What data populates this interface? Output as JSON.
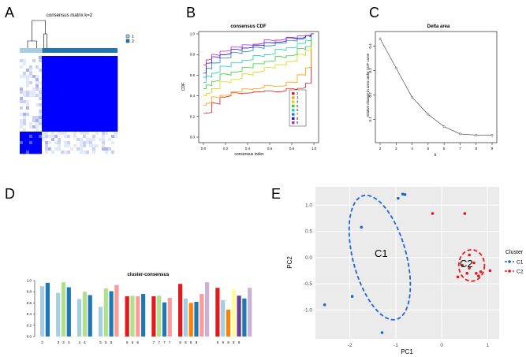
{
  "panel_letters": [
    "A",
    "B",
    "C",
    "D",
    "E"
  ],
  "colors": {
    "k2": "#e31a1c",
    "k3": "#ff9d00",
    "k4": "#d8d800",
    "k5": "#33cc33",
    "k6": "#1fc9b3",
    "k7": "#1f78d4",
    "k8": "#2a0fd8",
    "k9": "#b027c4",
    "consensus_blue": "#0000ff",
    "track_light": "#a6cee3",
    "track_dark": "#1f78b4",
    "c1": "#1f63d6",
    "c2": "#e41a1c",
    "panel_bg": "#ebebeb"
  },
  "chart_data": [
    {
      "panel": "A",
      "type": "heatmap",
      "title": "consensus matrix k=2",
      "legend": [
        "1",
        "2"
      ],
      "clusters": [
        {
          "label": "1",
          "share": 0.23
        },
        {
          "label": "2",
          "share": 0.77
        }
      ],
      "value_range": [
        0,
        1
      ]
    },
    {
      "panel": "B",
      "type": "line",
      "title": "consensus CDF",
      "xlabel": "consensus index",
      "ylabel": "CDF",
      "xlim": [
        0,
        1
      ],
      "ylim": [
        0,
        1
      ],
      "xticks": [
        "0.0",
        "0.2",
        "0.4",
        "0.6",
        "0.8",
        "1.0"
      ],
      "yticks": [
        "0.0",
        "0.2",
        "0.4",
        "0.6",
        "0.8",
        "1.0"
      ],
      "legend_position": "bottom-right",
      "x": [
        0,
        0.05,
        0.1,
        0.2,
        0.3,
        0.4,
        0.5,
        0.6,
        0.7,
        0.8,
        0.9,
        0.95,
        1.0
      ],
      "series": [
        {
          "name": "2",
          "values": [
            0.23,
            0.24,
            0.32,
            0.4,
            0.42,
            0.43,
            0.44,
            0.44,
            0.45,
            0.46,
            0.48,
            0.52,
            1.0
          ]
        },
        {
          "name": "3",
          "values": [
            0.31,
            0.34,
            0.38,
            0.41,
            0.44,
            0.46,
            0.48,
            0.49,
            0.5,
            0.53,
            0.6,
            0.68,
            1.0
          ]
        },
        {
          "name": "4",
          "values": [
            0.4,
            0.43,
            0.47,
            0.53,
            0.57,
            0.6,
            0.64,
            0.67,
            0.7,
            0.74,
            0.79,
            0.85,
            1.0
          ]
        },
        {
          "name": "5",
          "values": [
            0.47,
            0.5,
            0.55,
            0.6,
            0.64,
            0.67,
            0.71,
            0.74,
            0.77,
            0.8,
            0.85,
            0.88,
            1.0
          ]
        },
        {
          "name": "6",
          "values": [
            0.53,
            0.58,
            0.63,
            0.68,
            0.72,
            0.75,
            0.78,
            0.81,
            0.84,
            0.87,
            0.91,
            0.93,
            1.0
          ]
        },
        {
          "name": "7",
          "values": [
            0.58,
            0.66,
            0.72,
            0.77,
            0.81,
            0.84,
            0.86,
            0.89,
            0.91,
            0.93,
            0.96,
            0.97,
            1.0
          ]
        },
        {
          "name": "8",
          "values": [
            0.62,
            0.72,
            0.77,
            0.81,
            0.84,
            0.87,
            0.89,
            0.91,
            0.93,
            0.95,
            0.97,
            0.98,
            1.0
          ]
        },
        {
          "name": "9",
          "values": [
            0.7,
            0.76,
            0.79,
            0.84,
            0.87,
            0.89,
            0.91,
            0.93,
            0.95,
            0.96,
            0.98,
            0.99,
            1.0
          ]
        }
      ]
    },
    {
      "panel": "C",
      "type": "line",
      "title": "Delta area",
      "xlabel": "k",
      "ylabel": "relative change in area under CDF curve",
      "xlim": [
        2,
        9
      ],
      "ylim": [
        0.03,
        0.44
      ],
      "yticks": [
        0.1,
        0.2,
        0.3,
        0.4
      ],
      "x": [
        2,
        3,
        4,
        5,
        6,
        7,
        8,
        9
      ],
      "values": [
        0.43,
        0.31,
        0.19,
        0.12,
        0.07,
        0.04,
        0.035,
        0.035
      ]
    },
    {
      "panel": "D",
      "type": "bar",
      "title": "cluster-consensus",
      "ylim": [
        0,
        1
      ],
      "yticks": [
        "0.0",
        "0.2",
        "0.4",
        "0.6",
        "0.8",
        "1.0"
      ],
      "groups": [
        {
          "k": 2,
          "bars": [
            {
              "label": "2",
              "value": 0.9,
              "color": "#a6cee3"
            },
            {
              "label": "",
              "value": 0.96,
              "color": "#1f78b4"
            }
          ]
        },
        {
          "k": 3,
          "bars": [
            {
              "label": "3",
              "value": 0.78,
              "color": "#a6cee3"
            },
            {
              "label": "3",
              "value": 0.97,
              "color": "#b2df8a"
            },
            {
              "label": "3",
              "value": 0.88,
              "color": "#1f78b4"
            }
          ]
        },
        {
          "k": 4,
          "bars": [
            {
              "label": "4",
              "value": 0.67,
              "color": "#a6cee3"
            },
            {
              "label": "4",
              "value": 0.8,
              "color": "#b2df8a"
            },
            {
              "label": "",
              "value": 0.74,
              "color": "#1f78b4"
            }
          ]
        },
        {
          "k": 5,
          "bars": [
            {
              "label": "5",
              "value": 0.53,
              "color": "#a6cee3"
            },
            {
              "label": "5",
              "value": 0.86,
              "color": "#b2df8a"
            },
            {
              "label": "5",
              "value": 0.81,
              "color": "#1f78b4"
            },
            {
              "label": "",
              "value": 0.92,
              "color": "#fb9a99"
            }
          ]
        },
        {
          "k": 6,
          "bars": [
            {
              "label": "6",
              "value": 0.72,
              "color": "#e31a1c"
            },
            {
              "label": "6",
              "value": 0.73,
              "color": "#b2df8a"
            },
            {
              "label": "6",
              "value": 0.72,
              "color": "#fb9a99"
            },
            {
              "label": "",
              "value": 0.76,
              "color": "#1f78b4"
            }
          ]
        },
        {
          "k": 7,
          "bars": [
            {
              "label": "7",
              "value": 0.72,
              "color": "#e31a1c"
            },
            {
              "label": "7",
              "value": 0.73,
              "color": "#b2df8a"
            },
            {
              "label": "7",
              "value": 0.61,
              "color": "#1f78b4"
            },
            {
              "label": "7",
              "value": 0.69,
              "color": "#fb9a99"
            }
          ]
        },
        {
          "k": 8,
          "bars": [
            {
              "label": "8",
              "value": 0.94,
              "color": "#e31a1c"
            },
            {
              "label": "8",
              "value": 0.68,
              "color": "#a6cee3"
            },
            {
              "label": "8",
              "value": 0.6,
              "color": "#ff7f00"
            },
            {
              "label": "8",
              "value": 0.62,
              "color": "#1f78b4"
            },
            {
              "label": "",
              "value": 0.76,
              "color": "#fb9a99"
            },
            {
              "label": "",
              "value": 0.97,
              "color": "#cab2d6"
            }
          ]
        },
        {
          "k": 9,
          "bars": [
            {
              "label": "9",
              "value": 0.87,
              "color": "#e31a1c"
            },
            {
              "label": "9",
              "value": 0.65,
              "color": "#a6cee3"
            },
            {
              "label": "9",
              "value": 0.48,
              "color": "#ff7f00"
            },
            {
              "label": "9",
              "value": 0.85,
              "color": "#ffff99"
            },
            {
              "label": "9",
              "value": 0.73,
              "color": "#6a3d9a"
            },
            {
              "label": "",
              "value": 0.68,
              "color": "#1f78b4"
            },
            {
              "label": "",
              "value": 0.87,
              "color": "#cab2d6"
            }
          ]
        }
      ]
    },
    {
      "panel": "E",
      "type": "scatter",
      "xlabel": "PC1",
      "ylabel": "PC2",
      "xlim": [
        -2.75,
        1.25
      ],
      "ylim": [
        -1.55,
        1.35
      ],
      "xticks": [
        -2,
        -1,
        0,
        1
      ],
      "yticks": [
        -1.0,
        -0.5,
        0.0,
        0.5,
        1.0
      ],
      "legend_title": "Cluster",
      "series": [
        {
          "name": "C1",
          "label": "C1",
          "points": [
            [
              -0.95,
              1.13
            ],
            [
              -0.8,
              1.2
            ],
            [
              -0.85,
              1.21
            ],
            [
              -1.75,
              0.58
            ],
            [
              -1.95,
              -0.74
            ],
            [
              -1.3,
              -1.43
            ],
            [
              -2.55,
              -0.9
            ]
          ],
          "ellipse": {
            "cx": -1.35,
            "cy": 0.0,
            "rx": 0.58,
            "ry": 1.22,
            "rotate": -15
          }
        },
        {
          "name": "C2",
          "label": "C2",
          "points": [
            [
              -0.2,
              0.84
            ],
            [
              0.5,
              0.84
            ],
            [
              0.6,
              -0.2
            ],
            [
              0.75,
              -0.3
            ],
            [
              0.55,
              -0.3
            ],
            [
              0.85,
              -0.27
            ],
            [
              0.35,
              -0.37
            ],
            [
              1.05,
              -0.25
            ],
            [
              0.7,
              -0.1
            ],
            [
              0.45,
              -0.15
            ],
            [
              0.8,
              -0.35
            ],
            [
              0.6,
              0.05
            ]
          ],
          "ellipse": {
            "cx": 0.65,
            "cy": -0.15,
            "rx": 0.28,
            "ry": 0.3,
            "rotate": 0
          }
        }
      ]
    }
  ]
}
